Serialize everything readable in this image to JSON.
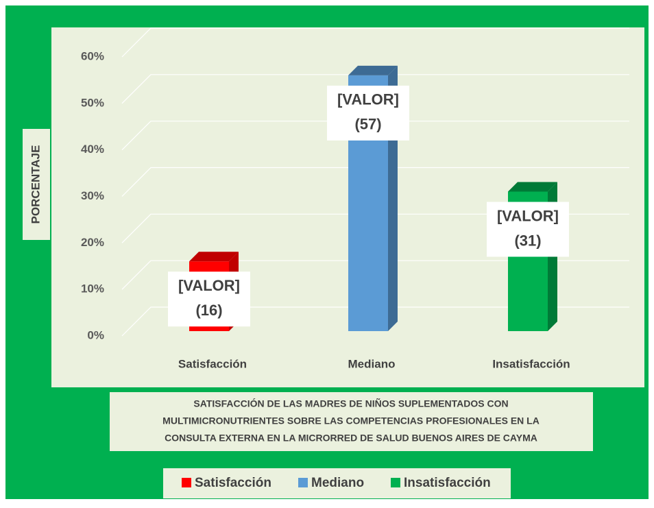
{
  "chart_data": {
    "type": "bar3d",
    "title": [
      "SATISFACCIÓN DE LAS MADRES DE NIÑOS SUPLEMENTADOS CON",
      "MULTIMICRONUTRIENTES SOBRE LAS COMPETENCIAS PROFESIONALES EN LA",
      "CONSULTA EXTERNA  EN LA MICRORRED DE SALUD BUENOS AIRES DE CAYMA"
    ],
    "y_axis_label": "PORCENTAJE",
    "categories": [
      "Satisfacción",
      "Mediano",
      "Insatisfacción"
    ],
    "values": [
      15,
      55,
      30
    ],
    "colors": [
      "#ff0000",
      "#5b9bd5",
      "#00b050"
    ],
    "side_colors": [
      "#c00000",
      "#3d6b94",
      "#007a37"
    ],
    "data_labels": [
      [
        "[VALOR]",
        "(16)"
      ],
      [
        "[VALOR]",
        "(57)"
      ],
      [
        "[VALOR]",
        "(31)"
      ]
    ],
    "ylim": [
      0,
      60
    ],
    "yticks": [
      {
        "value": 0,
        "label": "0%"
      },
      {
        "value": 10,
        "label": "10%"
      },
      {
        "value": 20,
        "label": "20%"
      },
      {
        "value": 30,
        "label": "30%"
      },
      {
        "value": 40,
        "label": "40%"
      },
      {
        "value": 50,
        "label": "50%"
      },
      {
        "value": 60,
        "label": "60%"
      }
    ],
    "grid": true,
    "legend": "bottom"
  }
}
